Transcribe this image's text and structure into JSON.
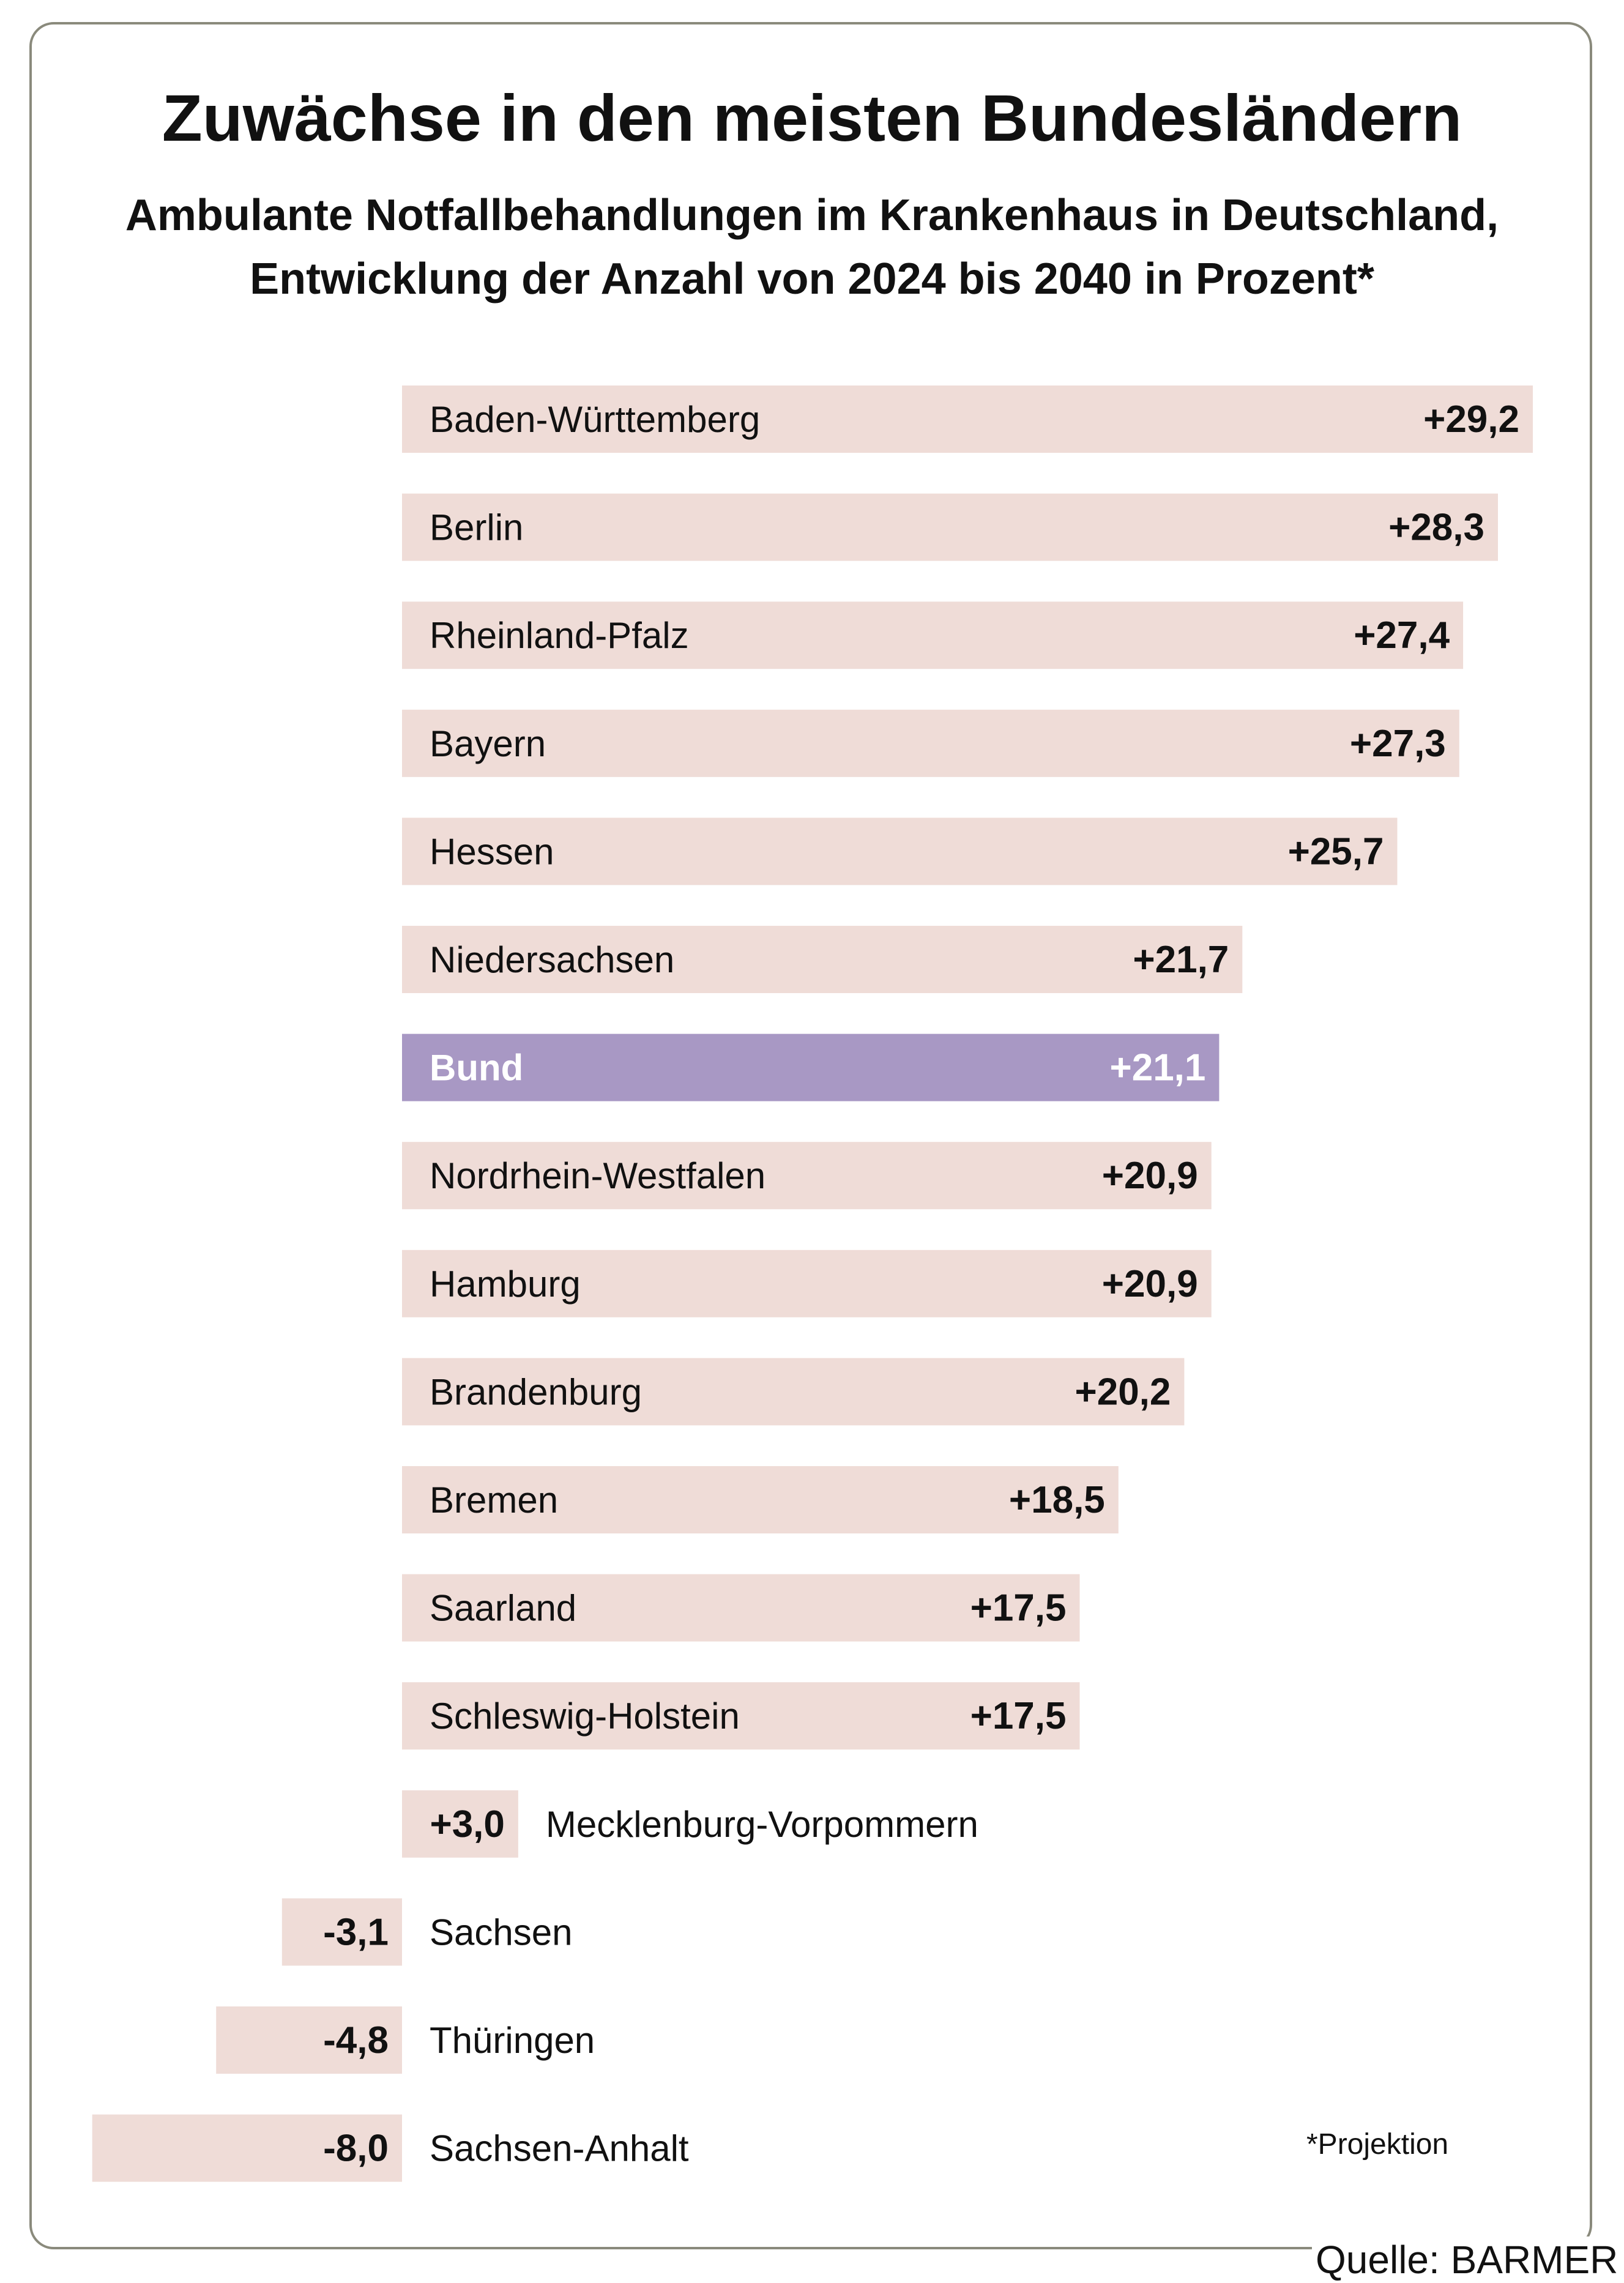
{
  "title": "Zuwächse in den meisten Bundesländern",
  "subtitle_lines": [
    "Ambulante Notfallbehandlungen im Krankenhaus in Deutschland,",
    "Entwicklung der Anzahl von 2024 bis 2040 in Prozent*"
  ],
  "footnote": "*Projektion",
  "source": "Quelle: BARMER",
  "colors": {
    "bar": "#efdcd7",
    "highlight_bar": "#a898c4",
    "highlight_text": "#ffffff",
    "text": "#111111"
  },
  "chart_data": {
    "type": "bar",
    "orientation": "horizontal",
    "categories": [
      "Baden-Württemberg",
      "Berlin",
      "Rheinland-Pfalz",
      "Bayern",
      "Hessen",
      "Niedersachsen",
      "Bund",
      "Nordrhein-Westfalen",
      "Hamburg",
      "Brandenburg",
      "Bremen",
      "Saarland",
      "Schleswig-Holstein",
      "Mecklenburg-Vorpommern",
      "Sachsen",
      "Thüringen",
      "Sachsen-Anhalt"
    ],
    "values": [
      29.2,
      28.3,
      27.4,
      27.3,
      25.7,
      21.7,
      21.1,
      20.9,
      20.9,
      20.2,
      18.5,
      17.5,
      17.5,
      3.0,
      -3.1,
      -4.8,
      -8.0
    ],
    "value_labels": [
      "+29,2",
      "+28,3",
      "+27,4",
      "+27,3",
      "+25,7",
      "+21,7",
      "+21,1",
      "+20,9",
      "+20,9",
      "+20,2",
      "+18,5",
      "+17,5",
      "+17,5",
      "+3,0",
      "-3,1",
      "-4,8",
      "-8,0"
    ],
    "highlight": "Bund",
    "xlim": [
      -8.0,
      29.2
    ]
  }
}
